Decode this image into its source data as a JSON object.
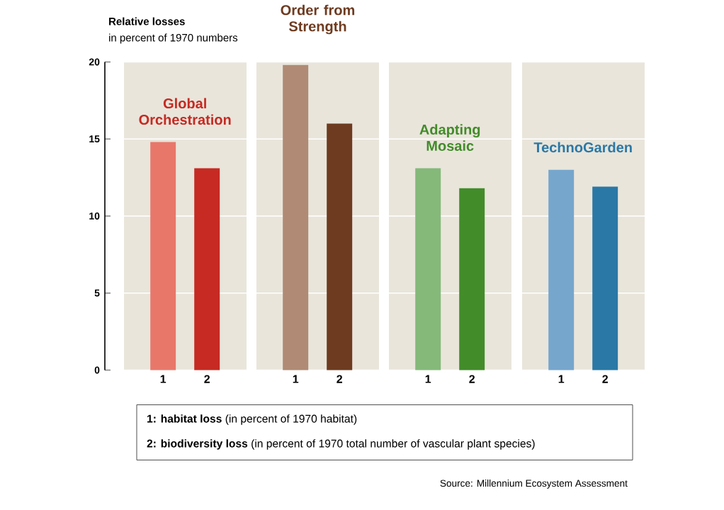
{
  "chart_data": [
    {
      "type": "bar",
      "title": "Global Orchestration",
      "ylabel": "Relative losses",
      "categories": [
        "1",
        "2"
      ],
      "values": [
        14.8,
        13.1
      ],
      "colors": [
        "#e8776a",
        "#c62a22"
      ],
      "ylim": [
        0,
        20
      ],
      "yticks": [
        0,
        5,
        10,
        15,
        20
      ],
      "grid": "y",
      "annotations": [
        "in percent of 1970 numbers",
        "**1: habitat loss** (in percent of 1970 habitat)",
        "**2: biodiversity loss** (in percent of 1970 total number of vascular plant species)",
        "Source: Millennium Ecosystem Assessment"
      ]
    },
    {
      "type": "bar",
      "title": "Order from Strength",
      "categories": [
        "1",
        "2"
      ],
      "values": [
        19.8,
        16.0
      ],
      "colors": [
        "#b08a74",
        "#6e3b20"
      ],
      "ylim": [
        0,
        20
      ],
      "yticks": [
        0,
        5,
        10,
        15,
        20
      ],
      "grid": "y",
      "tick_labels": "x"
    },
    {
      "type": "bar",
      "title": "Adapting Mosaic",
      "categories": [
        "1",
        "2"
      ],
      "values": [
        13.1,
        11.8
      ],
      "colors": [
        "#84b97a",
        "#428c2a"
      ],
      "ylim": [
        0,
        20
      ],
      "yticks": [
        0,
        5,
        10,
        15,
        20
      ],
      "grid": "y",
      "tick_labels": "x"
    },
    {
      "type": "bar",
      "title": "TechnoGarden",
      "categories": [
        "1",
        "2"
      ],
      "values": [
        13.0,
        11.9
      ],
      "colors": [
        "#76a6cc",
        "#2a78a6"
      ],
      "ylim": [
        0,
        20
      ],
      "yticks": [
        0,
        5,
        10,
        15,
        20
      ],
      "grid": "y",
      "tick_labels": "x"
    }
  ]
}
